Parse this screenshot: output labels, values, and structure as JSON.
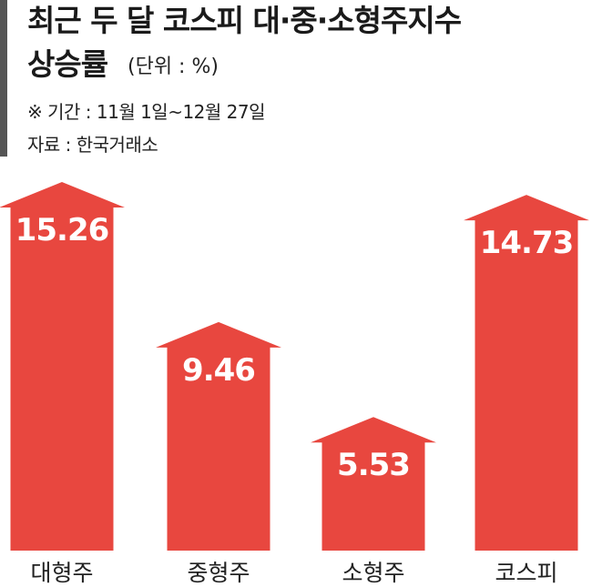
{
  "chart_data": {
    "type": "bar",
    "title": "최근 두 달 코스피 대·중·소형주지수",
    "subtitle": "상승률",
    "unit": "(단위 : %)",
    "notes": [
      "※ 기간 : 11월 1일~12월 27일",
      "자료 : 한국거래소"
    ],
    "categories": [
      "대형주",
      "중형주",
      "소형주",
      "코스피"
    ],
    "values": [
      15.26,
      9.46,
      5.53,
      14.73
    ],
    "color": "#e8473f"
  }
}
